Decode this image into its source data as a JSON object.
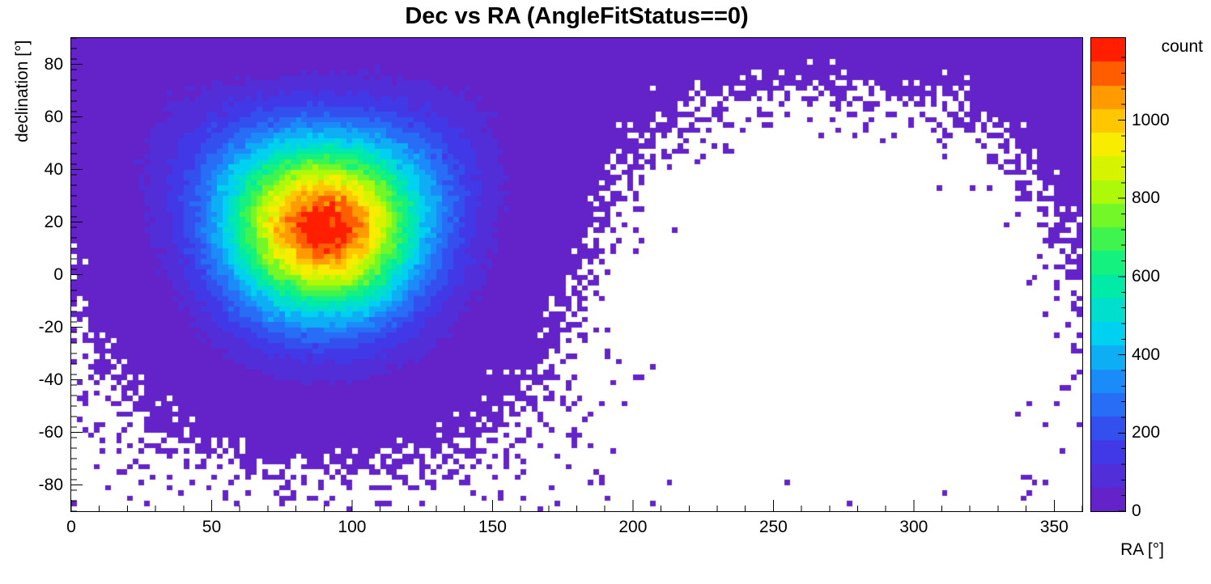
{
  "chart_data": {
    "type": "heatmap",
    "title": "Dec vs RA (AngleFitStatus==0)",
    "x_axis": {
      "label": "RA [°]",
      "min": 0,
      "max": 360,
      "major_ticks": [
        0,
        50,
        100,
        150,
        200,
        250,
        300,
        350
      ],
      "minor_tick_step": 10
    },
    "y_axis": {
      "label": "declination [°]",
      "min": -90,
      "max": 90,
      "major_ticks": [
        -80,
        -60,
        -40,
        -20,
        0,
        20,
        40,
        60,
        80
      ],
      "minor_tick_step": 4
    },
    "z_axis": {
      "label": "count",
      "min": 0,
      "max": 1210,
      "major_ticks": [
        0,
        200,
        400,
        600,
        800,
        1000
      ],
      "minor_tick_step": 40,
      "n_contours": 20
    },
    "palette_stops": [
      [
        0.0,
        99,
        35,
        201
      ],
      [
        0.12,
        60,
        60,
        235
      ],
      [
        0.25,
        30,
        130,
        250
      ],
      [
        0.37,
        0,
        210,
        240
      ],
      [
        0.5,
        0,
        240,
        150
      ],
      [
        0.6,
        80,
        245,
        60
      ],
      [
        0.7,
        190,
        250,
        0
      ],
      [
        0.8,
        255,
        235,
        0
      ],
      [
        0.9,
        255,
        150,
        0
      ],
      [
        1.0,
        255,
        30,
        0
      ]
    ],
    "distribution": {
      "description": "2D histogram of reconstructed declination vs right ascension for events with AngleFitStatus==0; a single roughly spherical-Gaussian concentration peaks near RA 90°, Dec +18° (peak bin ~1210 counts), with Poisson speckle halo extending over the celestial pole and wrapping to RA ~360°; region RA 200–330° at low/mid declination is essentially empty",
      "model": "spherical_gaussian_poisson",
      "center_ra_deg": 90,
      "center_dec_deg": 18,
      "sigma_deg": 24,
      "peak_bin_count": 1210,
      "ra_bin_width_deg": 2,
      "dec_bin_width_deg": 2,
      "random_seed": 1337
    },
    "grid": false,
    "legend_position": "colorbar-right",
    "colors": {
      "background": "#ffffff",
      "frame": "#000000",
      "text": "#000000"
    }
  }
}
